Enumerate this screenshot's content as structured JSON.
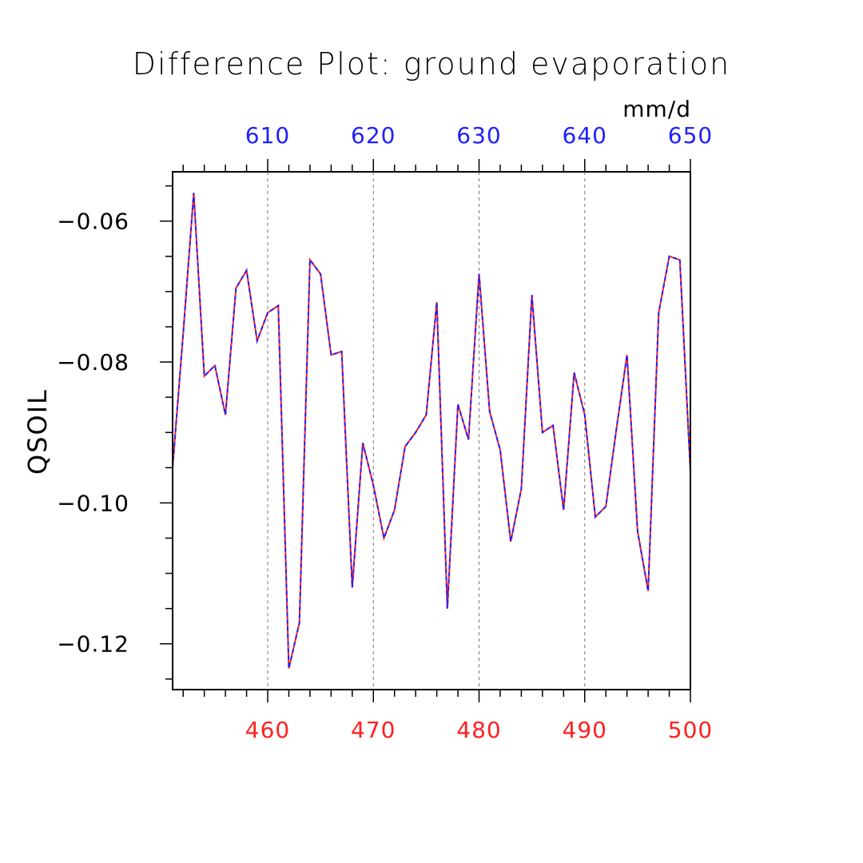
{
  "chart_data": {
    "type": "line",
    "title": "Difference Plot: ground evaporation",
    "units": "mm/d",
    "ylabel": "QSOIL",
    "xlabel": "",
    "ylim": [
      -0.1265,
      -0.053
    ],
    "bottom_axis": {
      "color": "#ff2020",
      "range": [
        451,
        500
      ],
      "ticks": [
        460,
        470,
        480,
        490,
        500
      ],
      "tick_labels": [
        "460",
        "470",
        "480",
        "490",
        "500"
      ]
    },
    "top_axis": {
      "color": "#2020ff",
      "range": [
        601,
        650
      ],
      "ticks": [
        610,
        620,
        630,
        640,
        650
      ],
      "tick_labels": [
        "610",
        "620",
        "630",
        "640",
        "650"
      ]
    },
    "y_ticks": [
      -0.06,
      -0.08,
      -0.1,
      -0.12
    ],
    "y_tick_labels": [
      "−0.06",
      "−0.08",
      "−0.10",
      "−0.12"
    ],
    "grid": "vertical-dashed",
    "series": [
      {
        "color_red": "#ff2020",
        "color_blue": "#2020ff",
        "x": [
          451,
          452,
          453,
          454,
          455,
          456,
          457,
          458,
          459,
          460,
          461,
          462,
          463,
          464,
          465,
          466,
          467,
          468,
          469,
          470,
          471,
          472,
          473,
          474,
          475,
          476,
          477,
          478,
          479,
          480,
          481,
          482,
          483,
          484,
          485,
          486,
          487,
          488,
          489,
          490,
          491,
          492,
          493,
          494,
          495,
          496,
          497,
          498,
          499,
          500
        ],
        "values": [
          -0.095,
          -0.076,
          -0.056,
          -0.082,
          -0.0805,
          -0.0875,
          -0.0695,
          -0.067,
          -0.077,
          -0.073,
          -0.072,
          -0.1235,
          -0.117,
          -0.0655,
          -0.0675,
          -0.079,
          -0.0785,
          -0.112,
          -0.0915,
          -0.0975,
          -0.105,
          -0.101,
          -0.092,
          -0.09,
          -0.0875,
          -0.0715,
          -0.115,
          -0.086,
          -0.091,
          -0.0675,
          -0.087,
          -0.0925,
          -0.1055,
          -0.098,
          -0.0705,
          -0.09,
          -0.089,
          -0.101,
          -0.0815,
          -0.0875,
          -0.102,
          -0.1005,
          -0.0895,
          -0.079,
          -0.104,
          -0.1125,
          -0.073,
          -0.065,
          -0.0655,
          -0.0955
        ]
      }
    ]
  }
}
